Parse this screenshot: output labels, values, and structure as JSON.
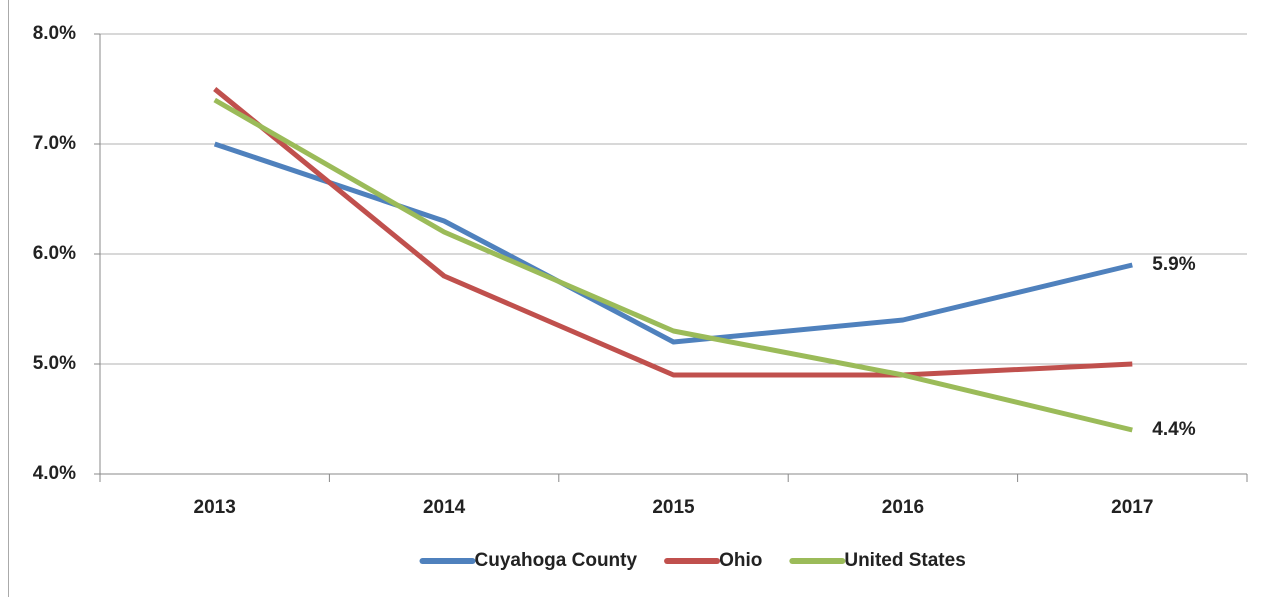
{
  "chart_data": {
    "type": "line",
    "categories": [
      "2013",
      "2014",
      "2015",
      "2016",
      "2017"
    ],
    "series": [
      {
        "name": "Cuyahoga County",
        "color": "#4f81bd",
        "values": [
          7.0,
          6.3,
          5.2,
          5.4,
          5.9
        ],
        "value_labels": [
          null,
          null,
          null,
          null,
          "5.9%"
        ]
      },
      {
        "name": "Ohio",
        "color": "#c0504d",
        "values": [
          7.5,
          5.8,
          4.9,
          4.9,
          5.0
        ]
      },
      {
        "name": "United States",
        "color": "#9bbb59",
        "values": [
          7.4,
          6.2,
          5.3,
          4.9,
          4.4
        ],
        "value_labels": [
          null,
          null,
          null,
          null,
          "4.4%"
        ]
      }
    ],
    "ylim": [
      4,
      8
    ],
    "yticks": [
      {
        "value": 4,
        "label": "4.0%"
      },
      {
        "value": 5,
        "label": "5.0%"
      },
      {
        "value": 6,
        "label": "6.0%"
      },
      {
        "value": 7,
        "label": "7.0%"
      },
      {
        "value": 8,
        "label": "8.0%"
      }
    ],
    "grid": true,
    "legend": "bottom"
  }
}
